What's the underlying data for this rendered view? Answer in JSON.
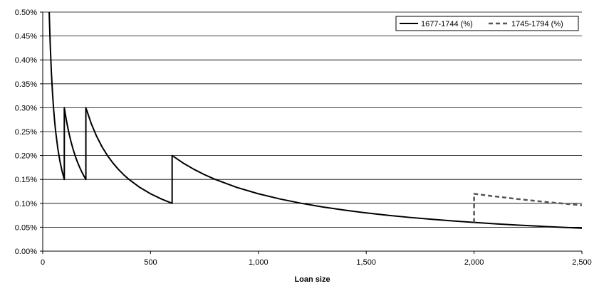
{
  "chart_data": {
    "type": "line",
    "title": "",
    "xlabel": "Loan size",
    "ylabel": "",
    "xlim": [
      0,
      2500
    ],
    "ylim": [
      0,
      0.5
    ],
    "x_ticks": [
      0,
      500,
      1000,
      1500,
      2000,
      2500
    ],
    "x_tick_labels": [
      "0",
      "500",
      "1,000",
      "1,500",
      "2,000",
      "2,500"
    ],
    "y_ticks": [
      0,
      0.05,
      0.1,
      0.15,
      0.2,
      0.25,
      0.3,
      0.35,
      0.4,
      0.45,
      0.5
    ],
    "y_tick_labels": [
      "0.00%",
      "0.05%",
      "0.10%",
      "0.15%",
      "0.20%",
      "0.25%",
      "0.30%",
      "0.35%",
      "0.40%",
      "0.45%",
      "0.50%"
    ],
    "grid": "horizontal",
    "legend_position": "top-right",
    "series": [
      {
        "name": "1677-1744 (%)",
        "style": "solid",
        "color": "#000000",
        "points": [
          [
            30,
            0.5
          ],
          [
            35,
            0.4286
          ],
          [
            40,
            0.375
          ],
          [
            45,
            0.3333
          ],
          [
            50,
            0.3
          ],
          [
            55,
            0.2727
          ],
          [
            60,
            0.25
          ],
          [
            70,
            0.2143
          ],
          [
            80,
            0.1875
          ],
          [
            90,
            0.1667
          ],
          [
            100,
            0.15
          ],
          [
            100,
            0.3
          ],
          [
            110,
            0.2727
          ],
          [
            120,
            0.25
          ],
          [
            130,
            0.2308
          ],
          [
            140,
            0.2143
          ],
          [
            150,
            0.2
          ],
          [
            160,
            0.1875
          ],
          [
            170,
            0.1765
          ],
          [
            180,
            0.1667
          ],
          [
            190,
            0.1579
          ],
          [
            200,
            0.15
          ],
          [
            200,
            0.3
          ],
          [
            225,
            0.2667
          ],
          [
            250,
            0.24
          ],
          [
            275,
            0.2182
          ],
          [
            300,
            0.2
          ],
          [
            325,
            0.1846
          ],
          [
            350,
            0.1714
          ],
          [
            375,
            0.16
          ],
          [
            400,
            0.15
          ],
          [
            450,
            0.1333
          ],
          [
            500,
            0.12
          ],
          [
            550,
            0.1091
          ],
          [
            600,
            0.1
          ],
          [
            600,
            0.2
          ],
          [
            650,
            0.1846
          ],
          [
            700,
            0.1714
          ],
          [
            750,
            0.16
          ],
          [
            800,
            0.15
          ],
          [
            900,
            0.1333
          ],
          [
            1000,
            0.12
          ],
          [
            1100,
            0.1091
          ],
          [
            1200,
            0.1
          ],
          [
            1300,
            0.0923
          ],
          [
            1400,
            0.0857
          ],
          [
            1500,
            0.08
          ],
          [
            1600,
            0.075
          ],
          [
            1700,
            0.0706
          ],
          [
            1800,
            0.0667
          ],
          [
            1900,
            0.0632
          ],
          [
            2000,
            0.06
          ],
          [
            2100,
            0.0571
          ],
          [
            2200,
            0.0545
          ],
          [
            2300,
            0.0522
          ],
          [
            2400,
            0.05
          ],
          [
            2500,
            0.048
          ]
        ]
      },
      {
        "name": "1745-1794 (%)",
        "style": "dashed",
        "color": "#555555",
        "points": [
          [
            2000,
            0.06
          ],
          [
            2000,
            0.12
          ],
          [
            2100,
            0.1143
          ],
          [
            2200,
            0.1091
          ],
          [
            2300,
            0.1043
          ],
          [
            2400,
            0.1
          ],
          [
            2500,
            0.096
          ]
        ]
      }
    ]
  }
}
